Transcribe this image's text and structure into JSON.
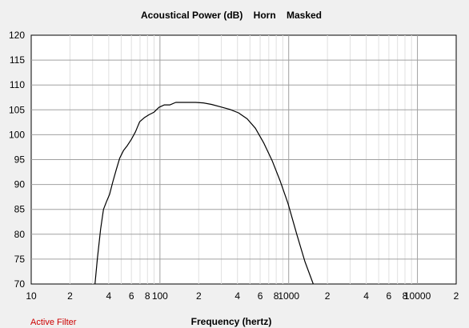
{
  "chart_data": {
    "type": "line",
    "title": "Acoustical Power (dB)    Horn    Masked",
    "xlabel": "Frequency (hertz)",
    "ylabel": "",
    "x_scale": "log",
    "xlim": [
      10,
      20000
    ],
    "ylim": [
      70,
      120
    ],
    "yticks": [
      70,
      75,
      80,
      85,
      90,
      95,
      100,
      105,
      110,
      115,
      120
    ],
    "xticks": [
      {
        "value": 10,
        "label": "10"
      },
      {
        "value": 20,
        "label": "2"
      },
      {
        "value": 40,
        "label": "4"
      },
      {
        "value": 60,
        "label": "6"
      },
      {
        "value": 80,
        "label": "8"
      },
      {
        "value": 100,
        "label": "100"
      },
      {
        "value": 200,
        "label": "2"
      },
      {
        "value": 400,
        "label": "4"
      },
      {
        "value": 600,
        "label": "6"
      },
      {
        "value": 800,
        "label": "8"
      },
      {
        "value": 1000,
        "label": "1000"
      },
      {
        "value": 2000,
        "label": "2"
      },
      {
        "value": 4000,
        "label": "4"
      },
      {
        "value": 6000,
        "label": "6"
      },
      {
        "value": 8000,
        "label": "8"
      },
      {
        "value": 10000,
        "label": "10000"
      },
      {
        "value": 20000,
        "label": "2"
      }
    ],
    "grid": true,
    "series": [
      {
        "color": "#000000",
        "x": [
          31.3,
          32.6,
          34.6,
          36.4,
          38.5,
          40.6,
          43.0,
          45.8,
          48.7,
          52.0,
          55.7,
          59.8,
          64.6,
          69.6,
          75.4,
          82.0,
          89.6,
          98.2,
          108.2,
          119.6,
          132.7,
          148.3,
          166.8,
          189.2,
          216.7,
          251.1,
          295.5,
          348.0,
          406.9,
          475.9,
          551.2,
          638.5,
          743.9,
          861.6,
          987.4,
          1154.6,
          1336.9,
          1550.8
        ],
        "y": [
          70.0,
          75.0,
          81.0,
          85.0,
          86.6,
          88.0,
          90.5,
          93.0,
          95.3,
          96.8,
          97.8,
          99.0,
          100.6,
          102.6,
          103.4,
          104.0,
          104.5,
          105.5,
          106.0,
          106.0,
          106.5,
          106.5,
          106.5,
          106.5,
          106.4,
          106.1,
          105.6,
          105.1,
          104.4,
          103.2,
          101.3,
          98.4,
          94.8,
          90.6,
          86.2,
          80.0,
          74.5,
          70.0
        ]
      }
    ]
  },
  "filter_label": "Active Filter",
  "colors": {
    "background": "#f0f0f0",
    "plot_background": "#ffffff",
    "grid_major": "#a0a0a0",
    "grid_minor": "#e0e0e0",
    "filter_text": "#cc0000"
  }
}
